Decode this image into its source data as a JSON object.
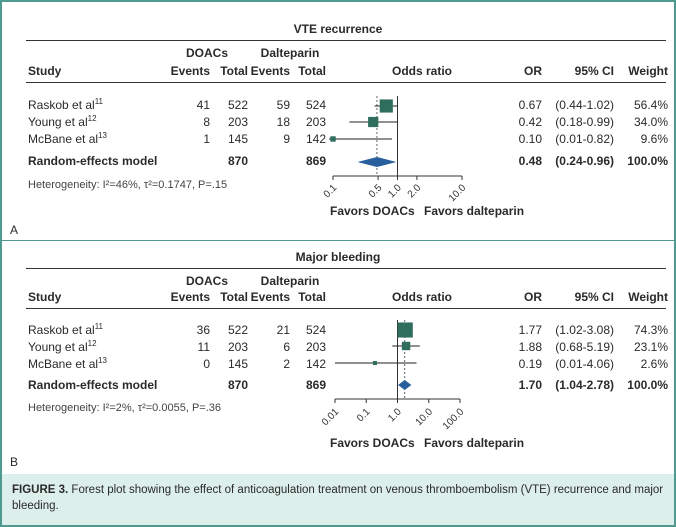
{
  "columns": {
    "study": "Study",
    "doacs": "DOACs",
    "dalteparin": "Dalteparin",
    "events": "Events",
    "total": "Total",
    "odds_ratio": "Odds ratio",
    "or": "OR",
    "ci": "95% CI",
    "weight": "Weight",
    "favors_left": "Favors DOACs",
    "favors_right": "Favors dalteparin"
  },
  "colors": {
    "frame": "#4e9a8e",
    "box": "#2f6e5c",
    "diamond": "#2a5f9e",
    "caption_bg": "#dcefeb"
  },
  "caption": {
    "label": "FIGURE 3.",
    "text": " Forest plot showing the effect of anticoagulation treatment on venous thromboembolism (VTE) recurrence and major bleeding."
  },
  "chart_data": [
    {
      "type": "forest",
      "panel": "A",
      "title": "VTE recurrence",
      "scale": "log",
      "ticks": [
        "0.1",
        "0.5",
        "1.0",
        "2.0",
        "10.0"
      ],
      "tick_values": [
        0.1,
        0.5,
        1,
        2,
        10
      ],
      "null_line": 1,
      "studies": [
        {
          "name": "Raskob et al",
          "ref": "11",
          "doac_events": "41",
          "doac_total": "522",
          "dal_events": "59",
          "dal_total": "524",
          "or": 0.67,
          "or_text": "0.67",
          "lo": 0.44,
          "hi": 1.02,
          "ci_text": "(0.44-1.02)",
          "weight": 56.4,
          "weight_text": "56.4%"
        },
        {
          "name": "Young et al",
          "ref": "12",
          "doac_events": "8",
          "doac_total": "203",
          "dal_events": "18",
          "dal_total": "203",
          "or": 0.42,
          "or_text": "0.42",
          "lo": 0.18,
          "hi": 0.99,
          "ci_text": "(0.18-0.99)",
          "weight": 34.0,
          "weight_text": "34.0%"
        },
        {
          "name": "McBane et al",
          "ref": "13",
          "doac_events": "1",
          "doac_total": "145",
          "dal_events": "9",
          "dal_total": "142",
          "or": 0.1,
          "or_text": "0.10",
          "lo": 0.01,
          "hi": 0.82,
          "ci_text": "(0.01-0.82)",
          "weight": 9.6,
          "weight_text": "9.6%"
        }
      ],
      "summary": {
        "name": "Random-effects model",
        "doac_total": "870",
        "dal_total": "869",
        "or": 0.48,
        "or_text": "0.48",
        "lo": 0.24,
        "hi": 0.96,
        "ci_text": "(0.24-0.96)",
        "weight_text": "100.0%"
      },
      "heterogeneity": "Heterogeneity: I²=46%, τ²=0.1747, P=.15"
    },
    {
      "type": "forest",
      "panel": "B",
      "title": "Major bleeding",
      "scale": "log",
      "ticks": [
        "0.01",
        "0.1",
        "1.0",
        "10.0",
        "100.0"
      ],
      "tick_values": [
        0.01,
        0.1,
        1,
        10,
        100
      ],
      "null_line": 1,
      "studies": [
        {
          "name": "Raskob et al",
          "ref": "11",
          "doac_events": "36",
          "doac_total": "522",
          "dal_events": "21",
          "dal_total": "524",
          "or": 1.77,
          "or_text": "1.77",
          "lo": 1.02,
          "hi": 3.08,
          "ci_text": "(1.02-3.08)",
          "weight": 74.3,
          "weight_text": "74.3%"
        },
        {
          "name": "Young et al",
          "ref": "12",
          "doac_events": "11",
          "doac_total": "203",
          "dal_events": "6",
          "dal_total": "203",
          "or": 1.88,
          "or_text": "1.88",
          "lo": 0.68,
          "hi": 5.19,
          "ci_text": "(0.68-5.19)",
          "weight": 23.1,
          "weight_text": "23.1%"
        },
        {
          "name": "McBane et al",
          "ref": "13",
          "doac_events": "0",
          "doac_total": "145",
          "dal_events": "2",
          "dal_total": "142",
          "or": 0.19,
          "or_text": "0.19",
          "lo": 0.01,
          "hi": 4.06,
          "ci_text": "(0.01-4.06)",
          "weight": 2.6,
          "weight_text": "2.6%"
        }
      ],
      "summary": {
        "name": "Random-effects model",
        "doac_total": "870",
        "dal_total": "869",
        "or": 1.7,
        "or_text": "1.70",
        "lo": 1.04,
        "hi": 2.78,
        "ci_text": "(1.04-2.78)",
        "weight_text": "100.0%"
      },
      "heterogeneity": "Heterogeneity: I²=2%, τ²=0.0055, P=.36"
    }
  ]
}
